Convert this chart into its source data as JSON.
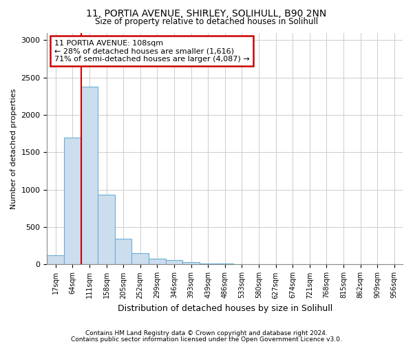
{
  "title1": "11, PORTIA AVENUE, SHIRLEY, SOLIHULL, B90 2NN",
  "title2": "Size of property relative to detached houses in Solihull",
  "xlabel": "Distribution of detached houses by size in Solihull",
  "ylabel": "Number of detached properties",
  "bin_labels": [
    "17sqm",
    "64sqm",
    "111sqm",
    "158sqm",
    "205sqm",
    "252sqm",
    "299sqm",
    "346sqm",
    "393sqm",
    "439sqm",
    "486sqm",
    "533sqm",
    "580sqm",
    "627sqm",
    "674sqm",
    "721sqm",
    "768sqm",
    "815sqm",
    "862sqm",
    "909sqm",
    "956sqm"
  ],
  "bin_values": [
    120,
    1700,
    2380,
    930,
    340,
    155,
    80,
    55,
    30,
    15,
    10,
    8,
    5,
    0,
    0,
    0,
    0,
    0,
    0,
    0,
    0
  ],
  "bar_color": "#ccdded",
  "bar_edge_color": "#6aafd6",
  "annotation_text_line1": "11 PORTIA AVENUE: 108sqm",
  "annotation_text_line2": "← 28% of detached houses are smaller (1,616)",
  "annotation_text_line3": "71% of semi-detached houses are larger (4,087) →",
  "annotation_box_color": "#ffffff",
  "annotation_box_edge": "#cc0000",
  "marker_line_color": "#cc0000",
  "ylim": [
    0,
    3100
  ],
  "yticks": [
    0,
    500,
    1000,
    1500,
    2000,
    2500,
    3000
  ],
  "footer1": "Contains HM Land Registry data © Crown copyright and database right 2024.",
  "footer2": "Contains public sector information licensed under the Open Government Licence v3.0.",
  "bg_color": "#ffffff",
  "grid_color": "#cccccc"
}
